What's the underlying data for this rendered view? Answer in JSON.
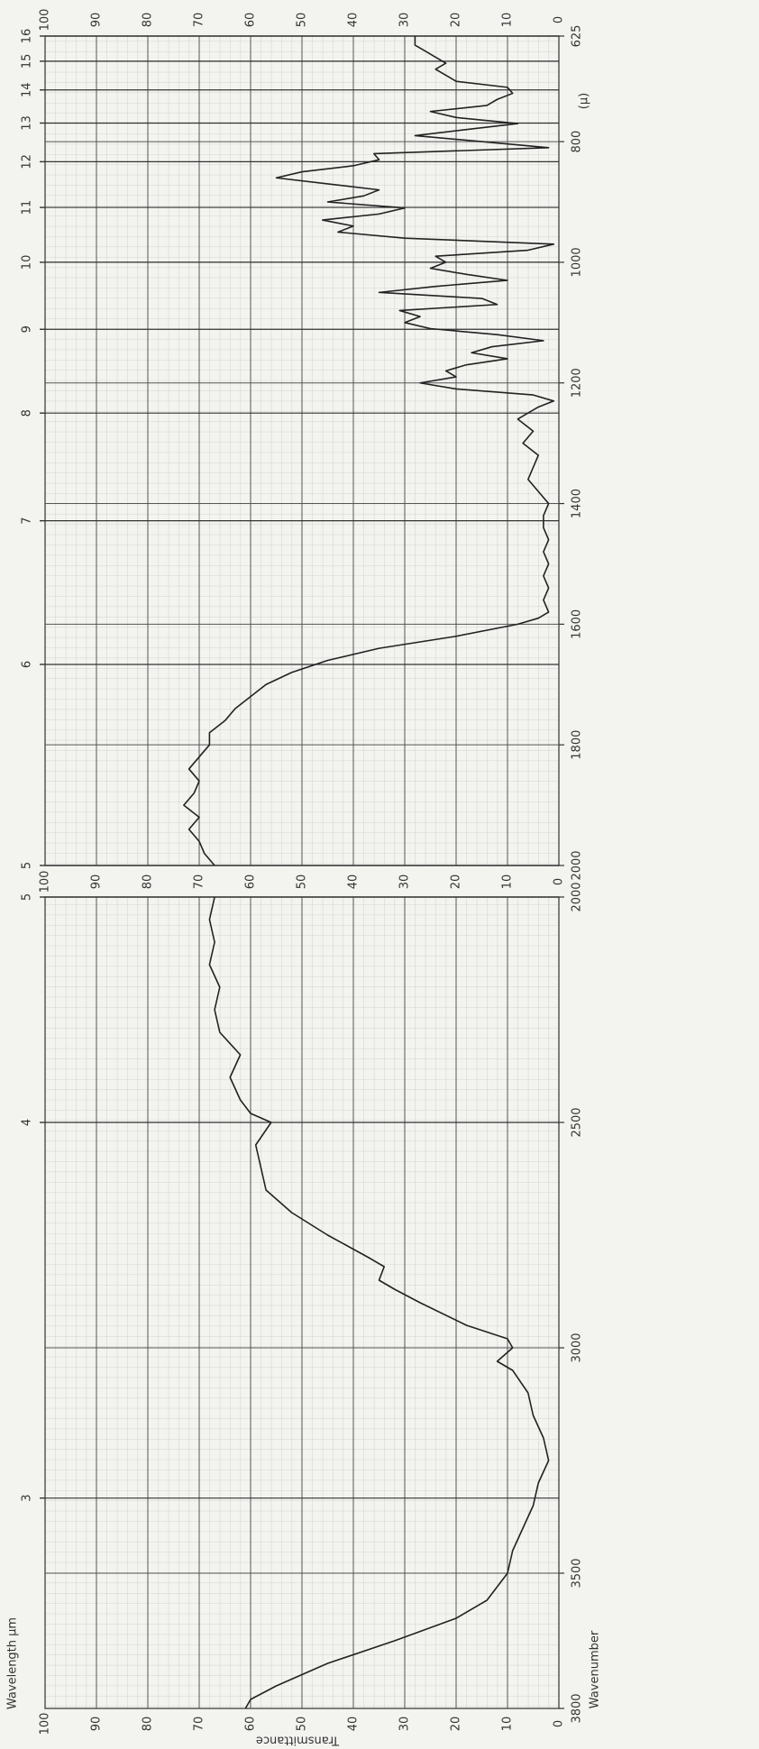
{
  "chart_data": [
    {
      "type": "line",
      "x_label": "Wavenumber",
      "y_label": "Transmittance",
      "x2_label": "Wavelength µm",
      "xlim": [
        3800,
        2000
      ],
      "xticks": [
        3800,
        3500,
        3000,
        2500,
        2000
      ],
      "x2ticks": [
        3,
        4,
        5
      ],
      "ylim": [
        0,
        100
      ],
      "yticks": [
        100,
        90,
        80,
        70,
        60,
        50,
        40,
        30,
        20,
        10,
        0
      ],
      "grid": true,
      "color": "#222222",
      "x": [
        3800,
        3780,
        3750,
        3700,
        3650,
        3600,
        3560,
        3500,
        3450,
        3400,
        3350,
        3300,
        3250,
        3200,
        3150,
        3100,
        3050,
        3030,
        3000,
        2980,
        2950,
        2900,
        2870,
        2850,
        2820,
        2800,
        2750,
        2700,
        2650,
        2600,
        2550,
        2500,
        2480,
        2450,
        2400,
        2350,
        2300,
        2250,
        2200,
        2150,
        2100,
        2050,
        2000
      ],
      "values": [
        61,
        60,
        55,
        45,
        32,
        20,
        14,
        10,
        9,
        7,
        5,
        4,
        2,
        3,
        5,
        6,
        9,
        12,
        9,
        10,
        18,
        27,
        32,
        35,
        34,
        37,
        45,
        52,
        57,
        58,
        59,
        56,
        60,
        62,
        64,
        62,
        66,
        67,
        66,
        68,
        67,
        68,
        67
      ]
    },
    {
      "type": "line",
      "unit_note": "(μ)",
      "xlim": [
        2000,
        625
      ],
      "xticks": [
        2000,
        1800,
        1600,
        1400,
        1200,
        1000,
        800,
        625
      ],
      "x2ticks": [
        5,
        6,
        7,
        8,
        9,
        10,
        11,
        12,
        13,
        14,
        15,
        16
      ],
      "ylim": [
        0,
        100
      ],
      "yticks": [
        100,
        90,
        80,
        70,
        60,
        50,
        40,
        30,
        20,
        10,
        0
      ],
      "grid": true,
      "color": "#222222",
      "x": [
        2000,
        1980,
        1960,
        1940,
        1920,
        1900,
        1880,
        1860,
        1840,
        1820,
        1800,
        1780,
        1760,
        1740,
        1720,
        1700,
        1680,
        1660,
        1640,
        1620,
        1600,
        1590,
        1580,
        1560,
        1540,
        1520,
        1500,
        1480,
        1460,
        1440,
        1420,
        1400,
        1380,
        1360,
        1340,
        1320,
        1300,
        1280,
        1260,
        1240,
        1230,
        1220,
        1210,
        1200,
        1190,
        1180,
        1170,
        1160,
        1150,
        1140,
        1130,
        1120,
        1110,
        1100,
        1090,
        1080,
        1070,
        1060,
        1050,
        1040,
        1030,
        1020,
        1010,
        1000,
        990,
        980,
        970,
        960,
        950,
        940,
        930,
        920,
        910,
        900,
        890,
        880,
        870,
        860,
        850,
        840,
        830,
        820,
        810,
        800,
        790,
        780,
        770,
        760,
        750,
        740,
        730,
        720,
        710,
        700,
        690,
        680,
        670,
        660,
        650,
        640,
        630,
        625
      ],
      "values": [
        67,
        69,
        70,
        72,
        70,
        73,
        71,
        70,
        72,
        70,
        68,
        68,
        65,
        63,
        60,
        57,
        52,
        45,
        35,
        20,
        8,
        4,
        2,
        3,
        2,
        3,
        2,
        3,
        2,
        3,
        3,
        2,
        4,
        6,
        5,
        4,
        7,
        5,
        8,
        4,
        1,
        5,
        20,
        27,
        20,
        22,
        18,
        10,
        17,
        13,
        3,
        12,
        25,
        30,
        27,
        31,
        12,
        15,
        35,
        24,
        10,
        18,
        25,
        22,
        24,
        6,
        1,
        30,
        43,
        40,
        46,
        35,
        30,
        45,
        38,
        35,
        45,
        55,
        50,
        40,
        35,
        36,
        2,
        15,
        28,
        18,
        8,
        20,
        25,
        14,
        12,
        9,
        10,
        20,
        22,
        24,
        22,
        24,
        26,
        28,
        28,
        28
      ]
    }
  ]
}
